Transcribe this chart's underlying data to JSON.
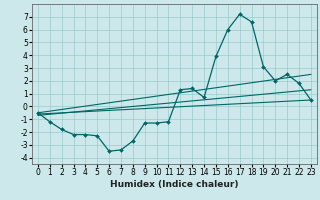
{
  "title": "",
  "xlabel": "Humidex (Indice chaleur)",
  "background_color": "#cce8ea",
  "grid_color": "#99cccc",
  "line_color": "#006666",
  "xlim": [
    -0.5,
    23.5
  ],
  "ylim": [
    -4.5,
    8.0
  ],
  "xticks": [
    0,
    1,
    2,
    3,
    4,
    5,
    6,
    7,
    8,
    9,
    10,
    11,
    12,
    13,
    14,
    15,
    16,
    17,
    18,
    19,
    20,
    21,
    22,
    23
  ],
  "yticks": [
    -4,
    -3,
    -2,
    -1,
    0,
    1,
    2,
    3,
    4,
    5,
    6,
    7
  ],
  "main_line_x": [
    0,
    1,
    2,
    3,
    4,
    5,
    6,
    7,
    8,
    9,
    10,
    11,
    12,
    13,
    14,
    15,
    16,
    17,
    18,
    19,
    20,
    21,
    22,
    23
  ],
  "main_line_y": [
    -0.5,
    -1.2,
    -1.8,
    -2.2,
    -2.2,
    -2.3,
    -3.5,
    -3.4,
    -2.7,
    -1.3,
    -1.3,
    -1.2,
    1.3,
    1.4,
    0.7,
    3.9,
    6.0,
    7.2,
    6.6,
    3.1,
    2.0,
    2.5,
    1.8,
    0.5
  ],
  "line1_x": [
    0,
    23
  ],
  "line1_y": [
    -0.6,
    0.5
  ],
  "line2_x": [
    0,
    23
  ],
  "line2_y": [
    -0.5,
    2.5
  ],
  "line3_x": [
    0,
    23
  ],
  "line3_y": [
    -0.7,
    1.3
  ],
  "xlabel_fontsize": 6.5,
  "tick_fontsize": 5.5
}
